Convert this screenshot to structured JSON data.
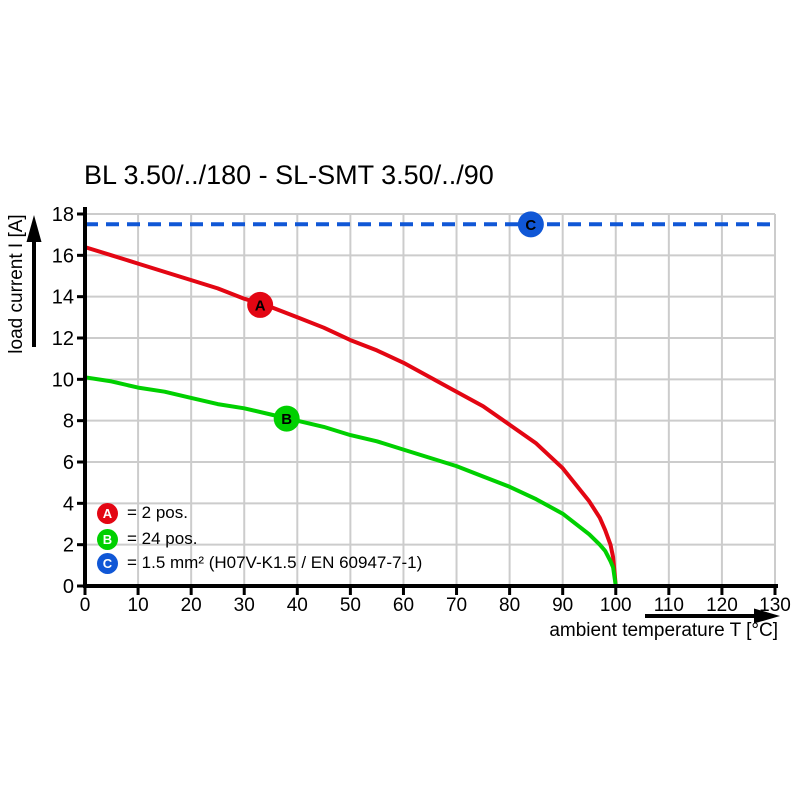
{
  "chart_data": {
    "type": "line",
    "title": "BL 3.50/../180 - SL-SMT 3.50/../90",
    "xlabel": "ambient temperature T [°C]",
    "ylabel": "load current I [A]",
    "xlim": [
      0,
      130
    ],
    "ylim": [
      0,
      18
    ],
    "x_ticks": [
      0,
      10,
      20,
      30,
      40,
      50,
      60,
      70,
      80,
      90,
      100,
      110,
      120,
      130
    ],
    "y_ticks": [
      0,
      2,
      4,
      6,
      8,
      10,
      12,
      14,
      16,
      18
    ],
    "grid": true,
    "legend_position": "inside-bottom-left",
    "series": [
      {
        "name": "A",
        "legend_label": "= 2 pos.",
        "color": "#e30613",
        "line_style": "solid",
        "x": [
          0,
          5,
          10,
          15,
          20,
          25,
          30,
          35,
          40,
          45,
          50,
          55,
          60,
          65,
          70,
          75,
          80,
          85,
          90,
          95,
          97,
          98,
          99,
          99.5,
          100
        ],
        "y": [
          16.4,
          16.0,
          15.6,
          15.2,
          14.8,
          14.4,
          13.9,
          13.5,
          13.0,
          12.5,
          11.9,
          11.4,
          10.8,
          10.1,
          9.4,
          8.7,
          7.8,
          6.9,
          5.7,
          4.1,
          3.3,
          2.7,
          2.0,
          1.4,
          0
        ],
        "marker": {
          "letter": "A",
          "x": 33,
          "y": 13.6
        }
      },
      {
        "name": "B",
        "legend_label": "= 24 pos.",
        "color": "#00d000",
        "line_style": "solid",
        "x": [
          0,
          5,
          10,
          15,
          20,
          25,
          30,
          35,
          40,
          45,
          50,
          55,
          60,
          65,
          70,
          75,
          80,
          85,
          90,
          95,
          97,
          98,
          99,
          99.5,
          100
        ],
        "y": [
          10.1,
          9.9,
          9.6,
          9.4,
          9.1,
          8.8,
          8.6,
          8.3,
          8.0,
          7.7,
          7.3,
          7.0,
          6.6,
          6.2,
          5.8,
          5.3,
          4.8,
          4.2,
          3.5,
          2.5,
          2.0,
          1.7,
          1.2,
          0.9,
          0
        ],
        "marker": {
          "letter": "B",
          "x": 38,
          "y": 8.1
        }
      },
      {
        "name": "C",
        "legend_label": "= 1.5 mm² (H07V-K1.5 / EN 60947-7-1)",
        "color": "#1057d6",
        "line_style": "dashed",
        "x": [
          0,
          130
        ],
        "y": [
          17.5,
          17.5
        ],
        "marker": {
          "letter": "C",
          "x": 84,
          "y": 17.5
        }
      }
    ]
  },
  "colors": {
    "background": "#ffffff",
    "grid": "#cccccc",
    "axis": "#000000",
    "series_a": "#e30613",
    "series_b": "#00d000",
    "series_c": "#1057d6"
  }
}
